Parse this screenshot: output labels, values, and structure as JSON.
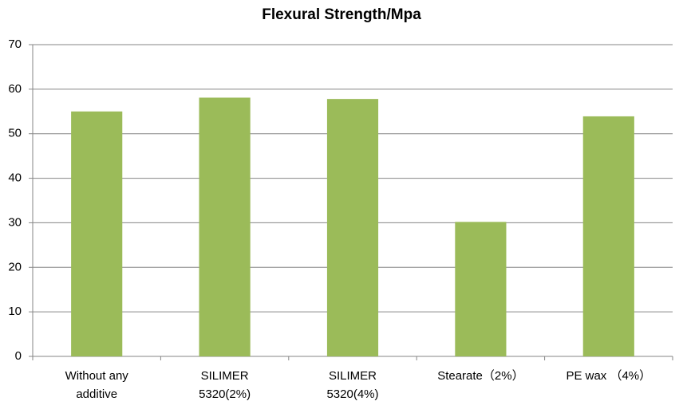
{
  "chart_data": {
    "type": "bar",
    "title": "Flexural Strength/Mpa",
    "categories": [
      "Without any additive",
      "SILIMER 5320(2%)",
      "SILIMER 5320(4%)",
      "Stearate（2%）",
      "PE wax （4%）"
    ],
    "values": [
      55,
      58.1,
      57.8,
      30.2,
      53.9
    ],
    "color": "#9bbb59",
    "ylim": [
      0,
      70
    ],
    "yticks": [
      0,
      10,
      20,
      30,
      40,
      50,
      60,
      70
    ],
    "grid": true
  }
}
